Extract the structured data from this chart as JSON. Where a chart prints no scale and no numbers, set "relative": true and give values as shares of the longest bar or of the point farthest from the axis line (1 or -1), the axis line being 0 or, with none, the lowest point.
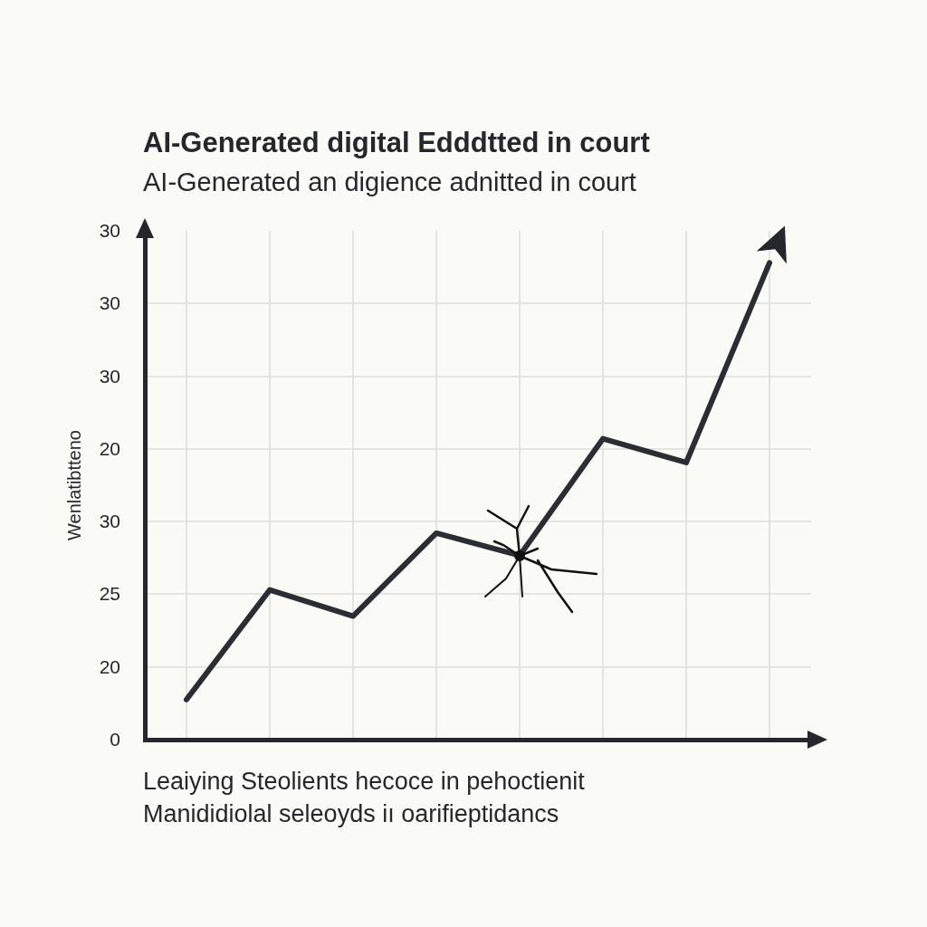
{
  "chart_data": {
    "type": "line",
    "title": "AI-Generated digital Edddtted in court",
    "subtitle": "AI-Generated an digience adnitted in court",
    "ylabel": "Wenlatibtteno",
    "annotations": [
      "30",
      "30",
      "30",
      "20",
      "30",
      "25",
      "20",
      "0",
      "Leaiying Steolients hecoce in pehoctienit",
      "Manididiolal seleoyds iı oarifieptidancs"
    ],
    "categories": [
      null,
      null,
      null,
      null,
      null,
      null,
      null,
      null
    ],
    "series": [
      {
        "color": "#2a2d33",
        "values": [
          0.084,
          0.314,
          0.259,
          0.433,
          0.386,
          0.631,
          0.581,
          1
        ]
      }
    ],
    "relative": true,
    "grid": true,
    "legend": false,
    "marker": "none",
    "line_style": "solid"
  }
}
